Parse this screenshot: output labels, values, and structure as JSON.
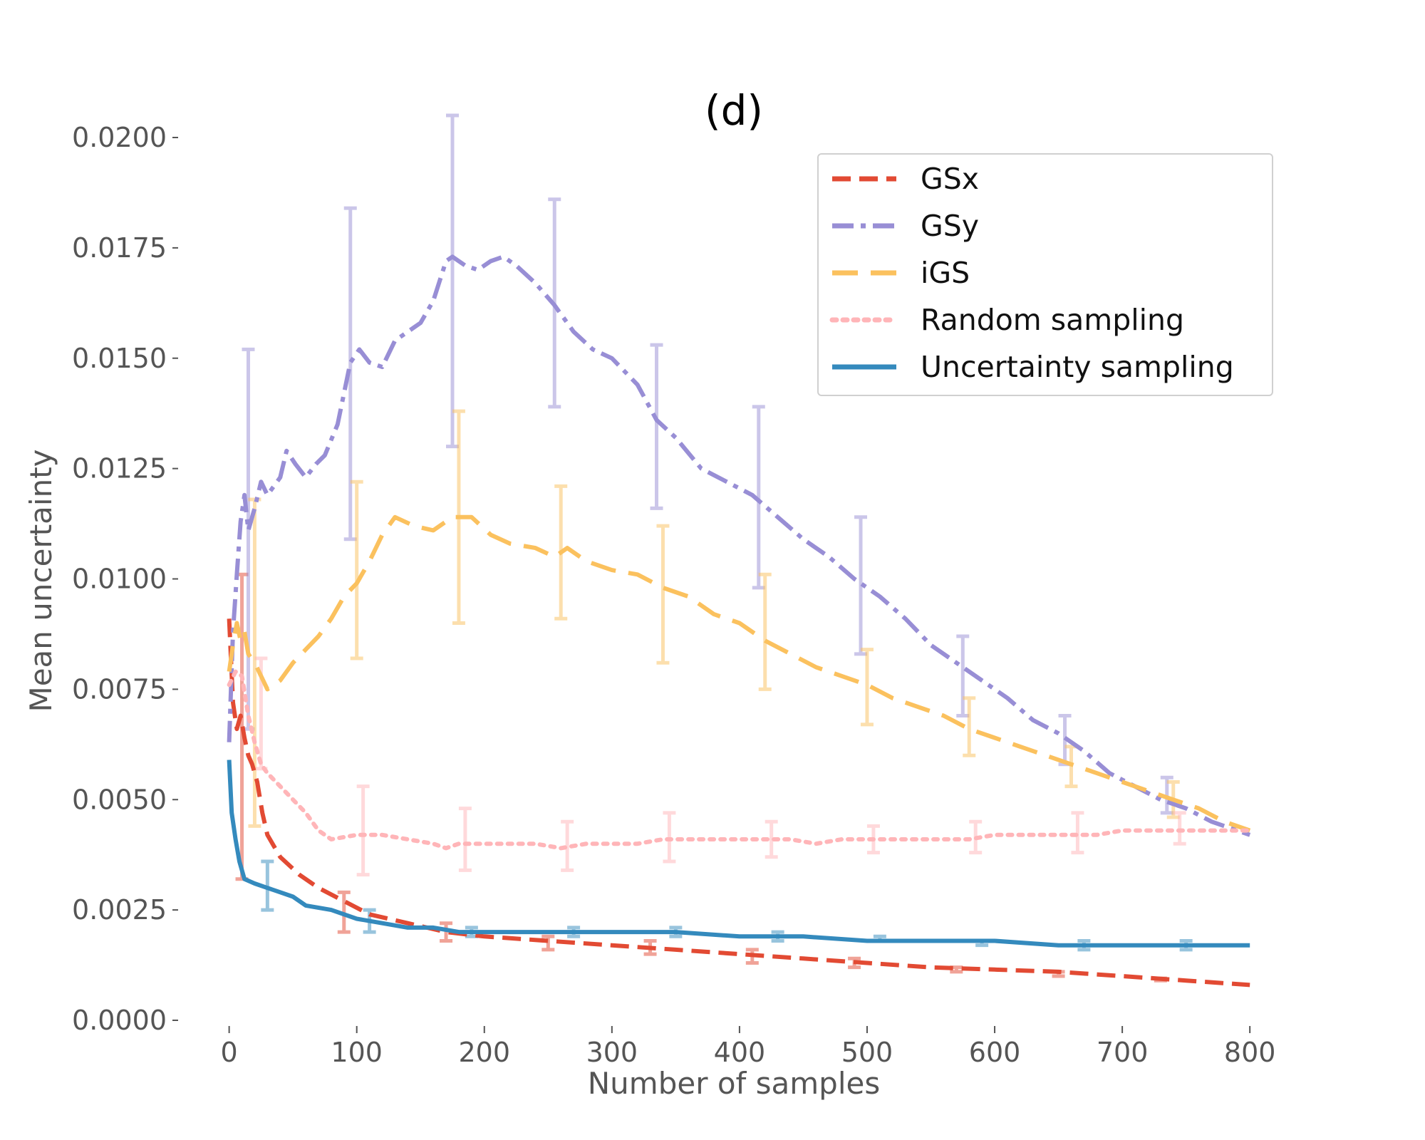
{
  "chart_data": {
    "type": "line",
    "title": "(d)",
    "xlabel": "Number of samples",
    "ylabel": "Mean uncertainty",
    "xlim": [
      -40,
      820
    ],
    "ylim": [
      0,
      0.02
    ],
    "grid": false,
    "legend_position": "top-right",
    "xticks": [
      "0",
      "100",
      "200",
      "300",
      "400",
      "500",
      "600",
      "700",
      "800"
    ],
    "xtick_values": [
      0,
      100,
      200,
      300,
      400,
      500,
      600,
      700,
      800
    ],
    "yticks": [
      "0.0000",
      "0.0025",
      "0.0050",
      "0.0075",
      "0.0100",
      "0.0125",
      "0.0150",
      "0.0175",
      "0.0200"
    ],
    "ytick_values": [
      0,
      0.0025,
      0.005,
      0.0075,
      0.01,
      0.0125,
      0.015,
      0.0175,
      0.02
    ],
    "series": [
      {
        "name": "GSx",
        "color": "#E24A33",
        "dash": "dashed",
        "points": [
          [
            0,
            0.0091
          ],
          [
            3,
            0.0072
          ],
          [
            6,
            0.0066
          ],
          [
            9,
            0.0069
          ],
          [
            12,
            0.0064
          ],
          [
            15,
            0.006
          ],
          [
            18,
            0.0058
          ],
          [
            22,
            0.0054
          ],
          [
            26,
            0.0047
          ],
          [
            30,
            0.0042
          ],
          [
            40,
            0.0037
          ],
          [
            55,
            0.0033
          ],
          [
            70,
            0.003
          ],
          [
            90,
            0.0027
          ],
          [
            110,
            0.0024
          ],
          [
            140,
            0.0022
          ],
          [
            170,
            0.002
          ],
          [
            200,
            0.0019
          ],
          [
            250,
            0.0018
          ],
          [
            300,
            0.0017
          ],
          [
            350,
            0.0016
          ],
          [
            400,
            0.0015
          ],
          [
            450,
            0.0014
          ],
          [
            500,
            0.0013
          ],
          [
            550,
            0.0012
          ],
          [
            600,
            0.00115
          ],
          [
            650,
            0.0011
          ],
          [
            700,
            0.001
          ],
          [
            750,
            0.0009
          ],
          [
            800,
            0.0008
          ]
        ],
        "errorbars": [
          [
            10,
            0.0032,
            0.0101
          ],
          [
            90,
            0.002,
            0.0029
          ],
          [
            170,
            0.0018,
            0.0022
          ],
          [
            250,
            0.0016,
            0.0019
          ],
          [
            330,
            0.0015,
            0.0018
          ],
          [
            410,
            0.0013,
            0.0016
          ],
          [
            490,
            0.0012,
            0.0014
          ],
          [
            570,
            0.0011,
            0.0012
          ],
          [
            650,
            0.001,
            0.0011
          ],
          [
            730,
            0.0009,
            0.00095
          ]
        ]
      },
      {
        "name": "GSy",
        "color": "#988ED5",
        "dash": "dashdot",
        "points": [
          [
            0,
            0.0063
          ],
          [
            3,
            0.0088
          ],
          [
            6,
            0.0101
          ],
          [
            9,
            0.0113
          ],
          [
            12,
            0.0119
          ],
          [
            15,
            0.0111
          ],
          [
            20,
            0.0116
          ],
          [
            25,
            0.0122
          ],
          [
            30,
            0.0119
          ],
          [
            40,
            0.0123
          ],
          [
            45,
            0.0129
          ],
          [
            52,
            0.0126
          ],
          [
            60,
            0.0123
          ],
          [
            68,
            0.0126
          ],
          [
            75,
            0.0128
          ],
          [
            85,
            0.0135
          ],
          [
            95,
            0.0149
          ],
          [
            102,
            0.0152
          ],
          [
            110,
            0.0149
          ],
          [
            120,
            0.0148
          ],
          [
            130,
            0.0154
          ],
          [
            140,
            0.0156
          ],
          [
            150,
            0.0158
          ],
          [
            160,
            0.0163
          ],
          [
            170,
            0.0172
          ],
          [
            175,
            0.0173
          ],
          [
            185,
            0.0171
          ],
          [
            195,
            0.017
          ],
          [
            205,
            0.0172
          ],
          [
            215,
            0.0173
          ],
          [
            225,
            0.0171
          ],
          [
            240,
            0.0167
          ],
          [
            255,
            0.0162
          ],
          [
            270,
            0.0156
          ],
          [
            285,
            0.0152
          ],
          [
            300,
            0.015
          ],
          [
            320,
            0.0144
          ],
          [
            335,
            0.0136
          ],
          [
            350,
            0.0132
          ],
          [
            370,
            0.0125
          ],
          [
            390,
            0.0122
          ],
          [
            410,
            0.0119
          ],
          [
            430,
            0.0114
          ],
          [
            450,
            0.0109
          ],
          [
            470,
            0.0105
          ],
          [
            490,
            0.01
          ],
          [
            510,
            0.0096
          ],
          [
            530,
            0.0091
          ],
          [
            550,
            0.0085
          ],
          [
            570,
            0.0081
          ],
          [
            590,
            0.0077
          ],
          [
            610,
            0.0073
          ],
          [
            630,
            0.0068
          ],
          [
            650,
            0.0065
          ],
          [
            670,
            0.0061
          ],
          [
            690,
            0.0056
          ],
          [
            710,
            0.0053
          ],
          [
            730,
            0.005
          ],
          [
            750,
            0.0048
          ],
          [
            770,
            0.0045
          ],
          [
            790,
            0.0043
          ],
          [
            800,
            0.0042
          ]
        ],
        "errorbars": [
          [
            15,
            0.0066,
            0.0152
          ],
          [
            95,
            0.0109,
            0.0184
          ],
          [
            175,
            0.013,
            0.0205
          ],
          [
            255,
            0.0139,
            0.0186
          ],
          [
            335,
            0.0116,
            0.0153
          ],
          [
            415,
            0.0098,
            0.0139
          ],
          [
            495,
            0.0083,
            0.0114
          ],
          [
            575,
            0.0069,
            0.0087
          ],
          [
            655,
            0.0058,
            0.0069
          ],
          [
            735,
            0.0047,
            0.0055
          ]
        ]
      },
      {
        "name": "iGS",
        "color": "#FBC15E",
        "dash": "longdash",
        "points": [
          [
            0,
            0.0079
          ],
          [
            3,
            0.0085
          ],
          [
            6,
            0.009
          ],
          [
            9,
            0.0086
          ],
          [
            12,
            0.0088
          ],
          [
            15,
            0.0083
          ],
          [
            20,
            0.0081
          ],
          [
            25,
            0.0078
          ],
          [
            30,
            0.0075
          ],
          [
            40,
            0.0077
          ],
          [
            50,
            0.0081
          ],
          [
            60,
            0.0084
          ],
          [
            70,
            0.0087
          ],
          [
            80,
            0.0091
          ],
          [
            90,
            0.0096
          ],
          [
            100,
            0.0099
          ],
          [
            110,
            0.0104
          ],
          [
            120,
            0.011
          ],
          [
            130,
            0.0114
          ],
          [
            145,
            0.0112
          ],
          [
            160,
            0.0111
          ],
          [
            175,
            0.0114
          ],
          [
            190,
            0.0114
          ],
          [
            205,
            0.011
          ],
          [
            220,
            0.0108
          ],
          [
            240,
            0.0107
          ],
          [
            255,
            0.0105
          ],
          [
            265,
            0.0107
          ],
          [
            280,
            0.0104
          ],
          [
            300,
            0.0102
          ],
          [
            320,
            0.0101
          ],
          [
            340,
            0.0098
          ],
          [
            360,
            0.0096
          ],
          [
            380,
            0.0092
          ],
          [
            400,
            0.009
          ],
          [
            420,
            0.0086
          ],
          [
            440,
            0.0083
          ],
          [
            460,
            0.008
          ],
          [
            480,
            0.0078
          ],
          [
            500,
            0.0076
          ],
          [
            520,
            0.0073
          ],
          [
            540,
            0.0071
          ],
          [
            560,
            0.0069
          ],
          [
            580,
            0.0066
          ],
          [
            600,
            0.0064
          ],
          [
            620,
            0.0062
          ],
          [
            640,
            0.006
          ],
          [
            660,
            0.0058
          ],
          [
            680,
            0.0056
          ],
          [
            700,
            0.0054
          ],
          [
            720,
            0.0052
          ],
          [
            740,
            0.005
          ],
          [
            760,
            0.0048
          ],
          [
            780,
            0.0045
          ],
          [
            800,
            0.0043
          ]
        ],
        "errorbars": [
          [
            20,
            0.0044,
            0.0118
          ],
          [
            100,
            0.0082,
            0.0122
          ],
          [
            180,
            0.009,
            0.0138
          ],
          [
            260,
            0.0091,
            0.0121
          ],
          [
            340,
            0.0081,
            0.0112
          ],
          [
            420,
            0.0075,
            0.0101
          ],
          [
            500,
            0.0067,
            0.0084
          ],
          [
            580,
            0.006,
            0.0073
          ],
          [
            660,
            0.0053,
            0.0062
          ],
          [
            740,
            0.0046,
            0.0054
          ]
        ]
      },
      {
        "name": "Random sampling",
        "color": "#FFB5B8",
        "dash": "dotted",
        "points": [
          [
            0,
            0.0076
          ],
          [
            5,
            0.0079
          ],
          [
            10,
            0.0078
          ],
          [
            15,
            0.0069
          ],
          [
            20,
            0.0063
          ],
          [
            25,
            0.0058
          ],
          [
            30,
            0.0056
          ],
          [
            40,
            0.0053
          ],
          [
            50,
            0.005
          ],
          [
            60,
            0.0047
          ],
          [
            70,
            0.0043
          ],
          [
            80,
            0.0041
          ],
          [
            100,
            0.0042
          ],
          [
            120,
            0.0042
          ],
          [
            140,
            0.0041
          ],
          [
            160,
            0.004
          ],
          [
            170,
            0.0039
          ],
          [
            180,
            0.004
          ],
          [
            200,
            0.004
          ],
          [
            220,
            0.004
          ],
          [
            240,
            0.004
          ],
          [
            260,
            0.0039
          ],
          [
            280,
            0.004
          ],
          [
            300,
            0.004
          ],
          [
            320,
            0.004
          ],
          [
            340,
            0.0041
          ],
          [
            360,
            0.0041
          ],
          [
            380,
            0.0041
          ],
          [
            400,
            0.0041
          ],
          [
            420,
            0.0041
          ],
          [
            440,
            0.0041
          ],
          [
            460,
            0.004
          ],
          [
            480,
            0.0041
          ],
          [
            500,
            0.0041
          ],
          [
            520,
            0.0041
          ],
          [
            540,
            0.0041
          ],
          [
            560,
            0.0041
          ],
          [
            580,
            0.0041
          ],
          [
            600,
            0.0042
          ],
          [
            620,
            0.0042
          ],
          [
            640,
            0.0042
          ],
          [
            660,
            0.0042
          ],
          [
            680,
            0.0042
          ],
          [
            700,
            0.0043
          ],
          [
            720,
            0.0043
          ],
          [
            740,
            0.0043
          ],
          [
            760,
            0.0043
          ],
          [
            780,
            0.0043
          ],
          [
            800,
            0.0043
          ]
        ],
        "errorbars": [
          [
            25,
            0.0057,
            0.0082
          ],
          [
            105,
            0.0033,
            0.0053
          ],
          [
            185,
            0.0034,
            0.0048
          ],
          [
            265,
            0.0034,
            0.0045
          ],
          [
            345,
            0.0036,
            0.0047
          ],
          [
            425,
            0.0037,
            0.0045
          ],
          [
            505,
            0.0038,
            0.0044
          ],
          [
            585,
            0.0038,
            0.0045
          ],
          [
            665,
            0.0038,
            0.0047
          ],
          [
            745,
            0.004,
            0.0047
          ]
        ]
      },
      {
        "name": "Uncertainty sampling",
        "color": "#348ABD",
        "dash": "solid",
        "points": [
          [
            0,
            0.0059
          ],
          [
            2,
            0.0047
          ],
          [
            5,
            0.0041
          ],
          [
            8,
            0.0036
          ],
          [
            12,
            0.0032
          ],
          [
            20,
            0.0031
          ],
          [
            30,
            0.003
          ],
          [
            40,
            0.0029
          ],
          [
            50,
            0.0028
          ],
          [
            60,
            0.0026
          ],
          [
            80,
            0.0025
          ],
          [
            100,
            0.0023
          ],
          [
            120,
            0.0022
          ],
          [
            140,
            0.0021
          ],
          [
            160,
            0.0021
          ],
          [
            180,
            0.002
          ],
          [
            200,
            0.002
          ],
          [
            250,
            0.002
          ],
          [
            300,
            0.002
          ],
          [
            350,
            0.002
          ],
          [
            400,
            0.0019
          ],
          [
            450,
            0.0019
          ],
          [
            500,
            0.0018
          ],
          [
            550,
            0.0018
          ],
          [
            600,
            0.0018
          ],
          [
            650,
            0.0017
          ],
          [
            700,
            0.0017
          ],
          [
            750,
            0.0017
          ],
          [
            800,
            0.0017
          ]
        ],
        "errorbars": [
          [
            30,
            0.0025,
            0.0036
          ],
          [
            110,
            0.002,
            0.0025
          ],
          [
            190,
            0.0019,
            0.0021
          ],
          [
            270,
            0.0019,
            0.0021
          ],
          [
            350,
            0.0019,
            0.0021
          ],
          [
            430,
            0.0018,
            0.002
          ],
          [
            510,
            0.0018,
            0.0019
          ],
          [
            590,
            0.0017,
            0.0018
          ],
          [
            670,
            0.0016,
            0.0018
          ],
          [
            750,
            0.0016,
            0.0018
          ]
        ]
      }
    ]
  }
}
